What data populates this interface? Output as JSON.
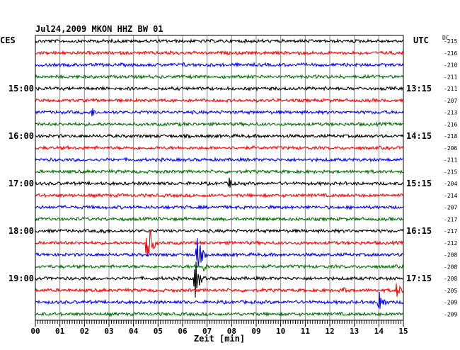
{
  "chart_data": {
    "type": "line",
    "title": "Jul24,2009   MKON HHZ BW 01",
    "left_axis_label": "CES",
    "right_axis_label": "UTC",
    "dc_label": "DC",
    "xlabel": "Zeit [min]",
    "xlim": [
      0,
      15
    ],
    "x_ticks": [
      "00",
      "01",
      "02",
      "03",
      "04",
      "05",
      "06",
      "07",
      "08",
      "09",
      "10",
      "11",
      "12",
      "13",
      "14",
      "15"
    ],
    "left_hour_labels": [
      {
        "trace": 4,
        "label": "15:00"
      },
      {
        "trace": 8,
        "label": "16:00"
      },
      {
        "trace": 12,
        "label": "17:00"
      },
      {
        "trace": 16,
        "label": "18:00"
      },
      {
        "trace": 20,
        "label": "19:00"
      }
    ],
    "right_hour_labels": [
      {
        "trace": 4,
        "label": "13:15"
      },
      {
        "trace": 8,
        "label": "14:15"
      },
      {
        "trace": 12,
        "label": "15:15"
      },
      {
        "trace": 16,
        "label": "16:15"
      },
      {
        "trace": 20,
        "label": "17:15"
      }
    ],
    "trace_colors": [
      "#000000",
      "#ff0000",
      "#0000ff",
      "#007000"
    ],
    "dc_offsets": [
      -215,
      -216,
      -210,
      -211,
      -211,
      -207,
      -213,
      -216,
      -218,
      -206,
      -211,
      -215,
      -204,
      -214,
      -207,
      -217,
      -217,
      -212,
      -208,
      -208,
      -208,
      -205,
      -209,
      -209
    ],
    "events": [
      {
        "trace": 1,
        "minute": 5.5,
        "amplitude": 6
      },
      {
        "trace": 1,
        "minute": 10.7,
        "amplitude": 4
      },
      {
        "trace": 2,
        "minute": 6.0,
        "amplitude": 5
      },
      {
        "trace": 4,
        "minute": 11.8,
        "amplitude": 4
      },
      {
        "trace": 6,
        "minute": 2.3,
        "amplitude": 8
      },
      {
        "trace": 12,
        "minute": 7.9,
        "amplitude": 10
      },
      {
        "trace": 16,
        "minute": 2.7,
        "amplitude": 8
      },
      {
        "trace": 17,
        "minute": 4.55,
        "amplitude": 40
      },
      {
        "trace": 18,
        "minute": 6.6,
        "amplitude": 28
      },
      {
        "trace": 19,
        "minute": 6.8,
        "amplitude": 10
      },
      {
        "trace": 20,
        "minute": 6.5,
        "amplitude": 32
      },
      {
        "trace": 21,
        "minute": 12.5,
        "amplitude": 8
      },
      {
        "trace": 21,
        "minute": 14.7,
        "amplitude": 14
      },
      {
        "trace": 22,
        "minute": 14.0,
        "amplitude": 22
      }
    ]
  }
}
